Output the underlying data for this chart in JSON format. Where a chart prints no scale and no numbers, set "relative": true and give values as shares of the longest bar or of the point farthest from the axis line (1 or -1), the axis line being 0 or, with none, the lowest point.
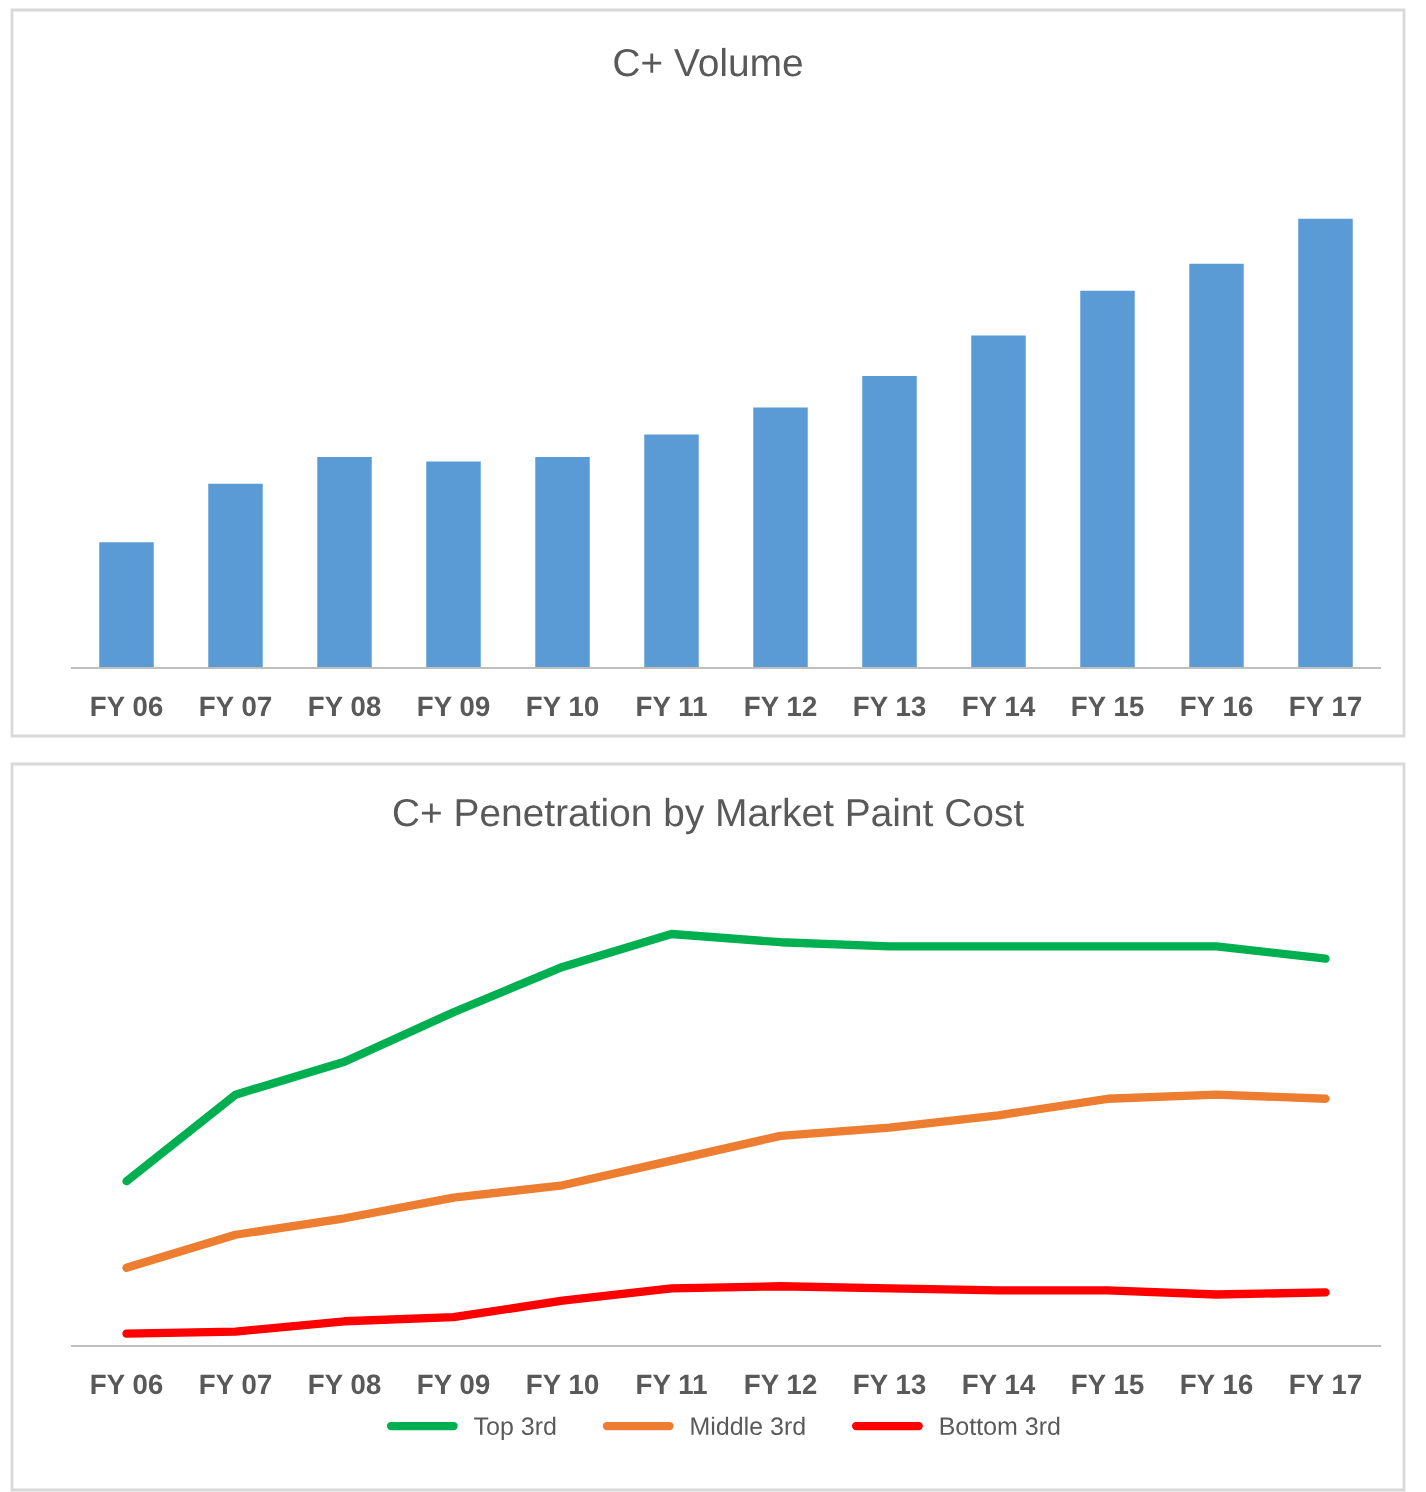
{
  "chart_data": [
    {
      "type": "bar",
      "title": "C+ Volume",
      "relative": true,
      "categories": [
        "FY 06",
        "FY 07",
        "FY 08",
        "FY 09",
        "FY 10",
        "FY 11",
        "FY 12",
        "FY 13",
        "FY 14",
        "FY 15",
        "FY 16",
        "FY 17"
      ],
      "color": "#5b9bd5",
      "values": [
        0.28,
        0.41,
        0.47,
        0.46,
        0.47,
        0.52,
        0.58,
        0.65,
        0.74,
        0.84,
        0.9,
        1.0
      ],
      "grid": false,
      "legend": false
    },
    {
      "type": "line",
      "title": "C+ Penetration by Market Paint Cost",
      "relative": true,
      "categories": [
        "FY 06",
        "FY 07",
        "FY 08",
        "FY 09",
        "FY 10",
        "FY 11",
        "FY 12",
        "FY 13",
        "FY 14",
        "FY 15",
        "FY 16",
        "FY 17"
      ],
      "series": [
        {
          "name": "Top 3rd",
          "color": "#00b050",
          "values": [
            0.4,
            0.61,
            0.69,
            0.81,
            0.92,
            1.0,
            0.98,
            0.97,
            0.97,
            0.97,
            0.97,
            0.94
          ]
        },
        {
          "name": "Middle 3rd",
          "color": "#ed7d31",
          "values": [
            0.19,
            0.27,
            0.31,
            0.36,
            0.39,
            0.45,
            0.51,
            0.53,
            0.56,
            0.6,
            0.61,
            0.6
          ]
        },
        {
          "name": "Bottom 3rd",
          "color": "#ff0000",
          "values": [
            0.03,
            0.035,
            0.06,
            0.07,
            0.11,
            0.14,
            0.145,
            0.14,
            0.135,
            0.135,
            0.125,
            0.13
          ]
        }
      ],
      "grid": false,
      "legend": "bottom",
      "marker": "none",
      "line_style": "solid"
    }
  ]
}
